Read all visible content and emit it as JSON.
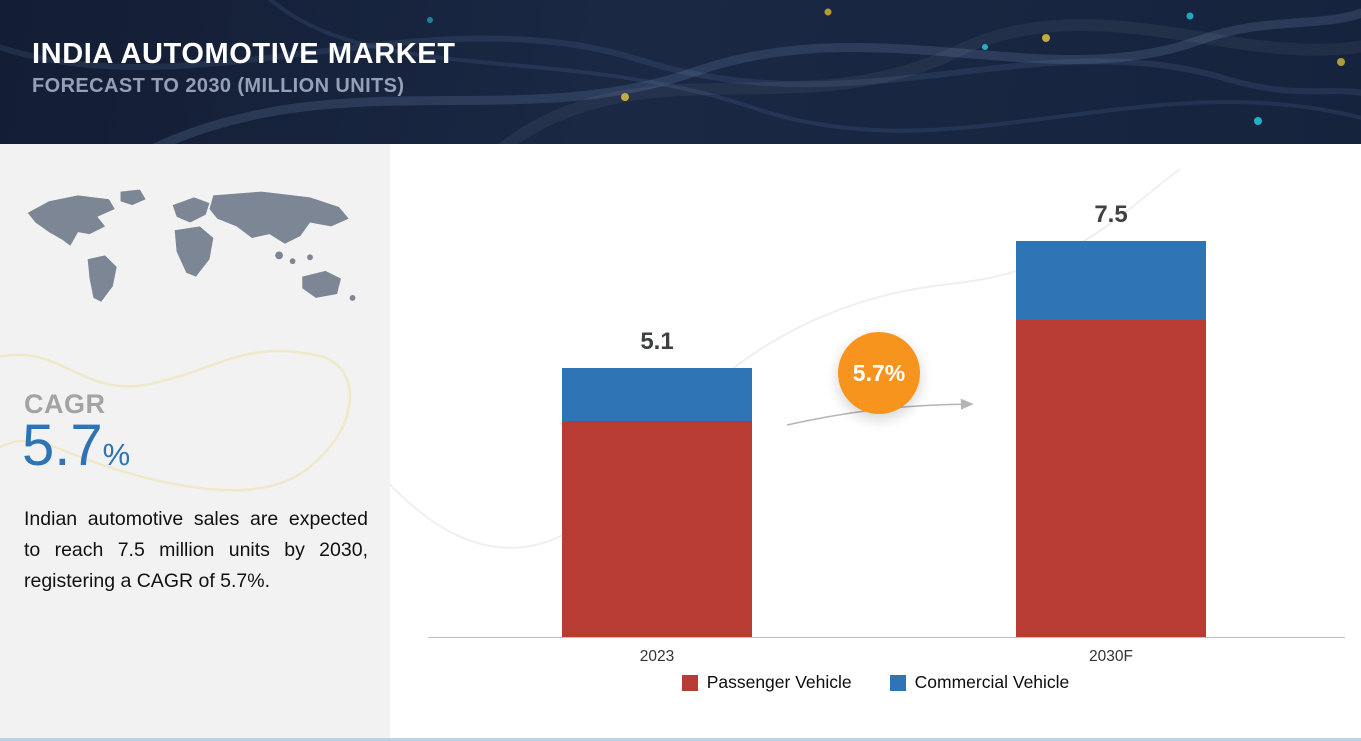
{
  "header": {
    "title": "INDIA AUTOMOTIVE MARKET",
    "subtitle": "FORECAST TO 2030 (MILLION UNITS)"
  },
  "sidebar": {
    "cagr_label": "CAGR",
    "cagr_value": "5.7",
    "cagr_unit": "%",
    "description": "Indian automotive sales are expected to reach 7.5 million units by 2030, registering a CAGR of 5.7%."
  },
  "chart_data": {
    "type": "bar",
    "subtype": "stacked",
    "title": "India Automotive Market Forecast to 2030 (Million Units)",
    "categories": [
      "2023",
      "2030F"
    ],
    "series": [
      {
        "name": "Passenger Vehicle",
        "color": "#b83c34",
        "values": [
          4.1,
          6.0
        ]
      },
      {
        "name": "Commercial Vehicle",
        "color": "#2e75b6",
        "values": [
          1.0,
          1.5
        ]
      }
    ],
    "totals": [
      5.1,
      7.5
    ],
    "total_labels": [
      "5.1",
      "7.5"
    ],
    "annotation": {
      "text": "5.7%",
      "shape": "circle",
      "color": "#f7941d",
      "meaning": "CAGR between 2023 and 2030F"
    },
    "ylim": [
      0,
      8
    ],
    "grid": false,
    "legend_position": "bottom"
  },
  "colors": {
    "header_bg": "#1a2844",
    "sidebar_bg": "#f2f2f2",
    "passenger_red": "#b83c34",
    "commercial_blue": "#2e75b6",
    "accent_orange": "#f7941d",
    "cagr_blue": "#2e74b5"
  }
}
